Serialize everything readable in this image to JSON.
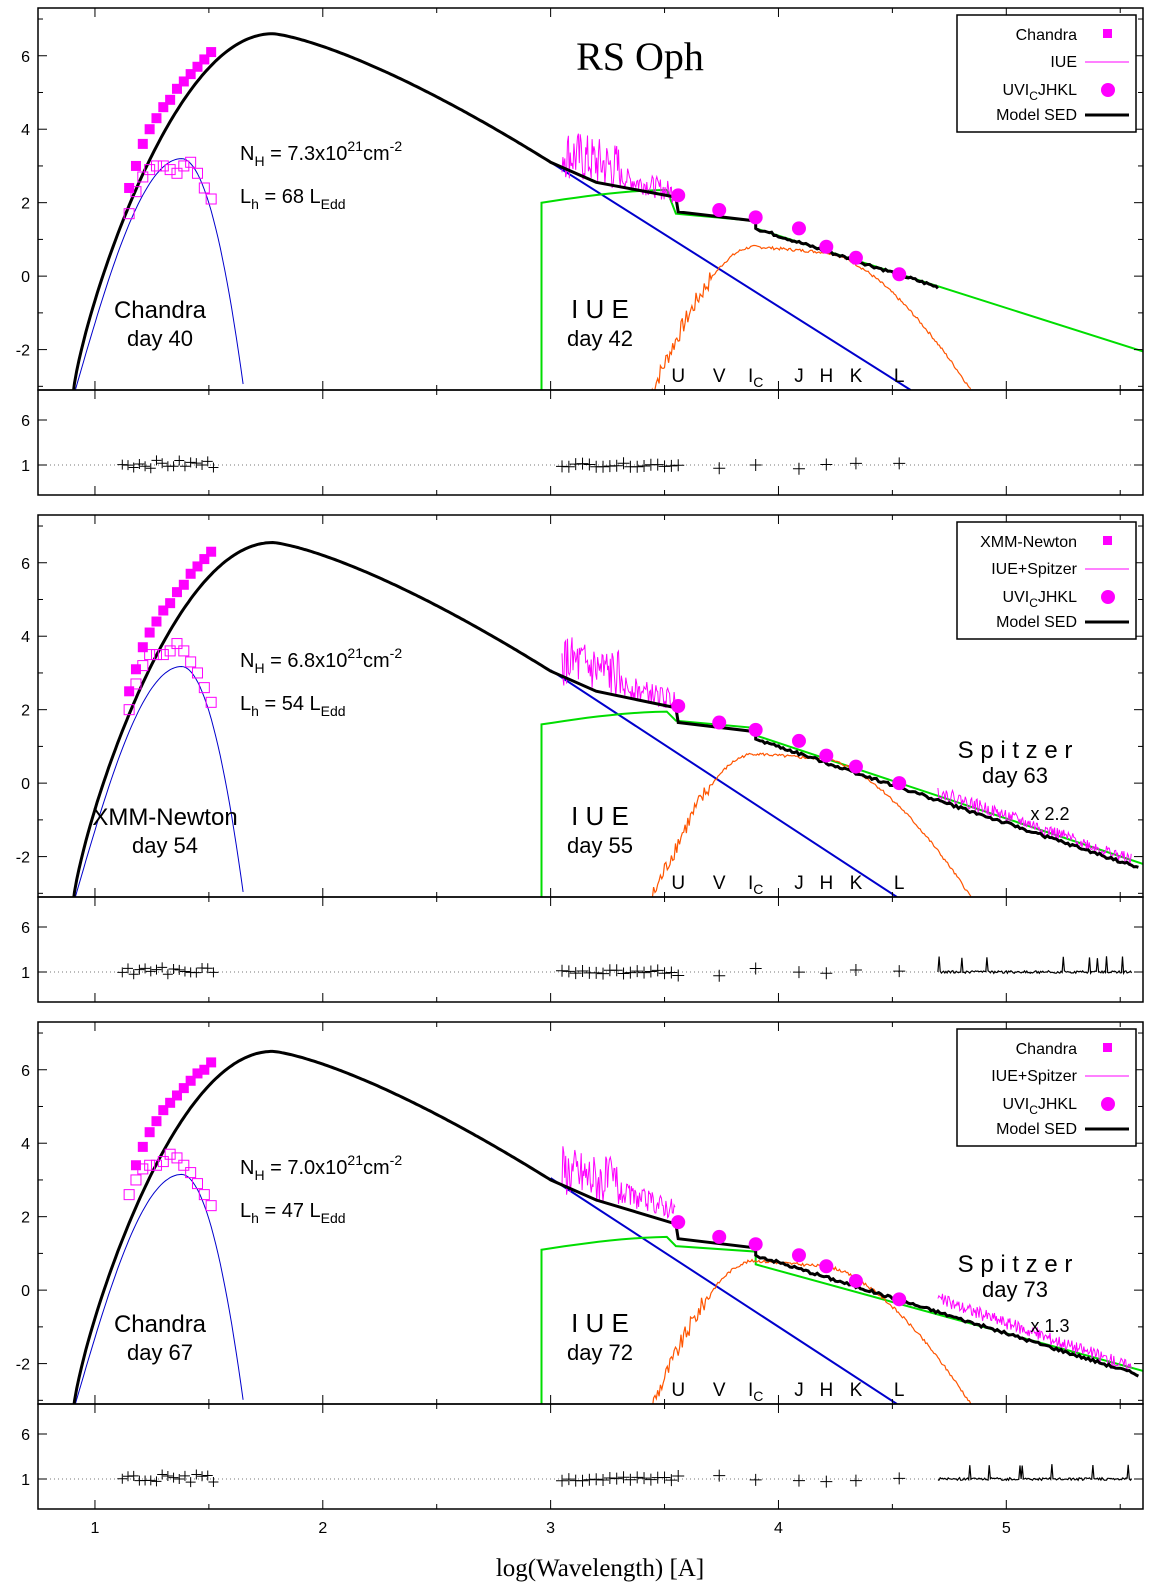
{
  "figure": {
    "main_title": "RS Oph",
    "xlabel": "log(Wavelength) [A]",
    "x_range": [
      0.75,
      5.6
    ],
    "x_ticks": [
      1,
      2,
      3,
      4,
      5
    ],
    "y_range": [
      -3.1,
      7.3
    ],
    "y_ticks": [
      -2,
      0,
      2,
      4,
      6
    ],
    "ratio_ticks": [
      1,
      6
    ],
    "band_labels": [
      {
        "text": "U",
        "x": 3.56
      },
      {
        "text": "V",
        "x": 3.74
      },
      {
        "text": "I",
        "sub": "C",
        "x": 3.9
      },
      {
        "text": "J",
        "x": 4.09
      },
      {
        "text": "H",
        "x": 4.21
      },
      {
        "text": "K",
        "x": 4.34
      },
      {
        "text": "L",
        "x": 4.53
      }
    ],
    "colors": {
      "xray": "#ff00ff",
      "model": "#000000",
      "blackbody": "#0000cc",
      "green_component": "#00dd00",
      "orange_component": "#ff5500",
      "residual": "#000000"
    }
  },
  "chart_data": [
    {
      "type": "line",
      "panel": "day 40/42",
      "legend": [
        "Chandra",
        "IUE",
        "UVI_CJHKL",
        "Model SED"
      ],
      "legend_display": {
        "xray": "Chandra",
        "spec": "IUE",
        "phot_pre": "UVI",
        "phot_sub": "C",
        "phot_post": "JHKL",
        "model": "Model SED"
      },
      "nh_mantissa": "7.3x10",
      "nh_exp": "21",
      "lh_value": "68",
      "xray_label": [
        "Chandra",
        "day 40"
      ],
      "uv_label": [
        "I U E",
        "day 42"
      ],
      "ir_label": null,
      "scale_label": null,
      "model_sed": {
        "peak_x": 1.78,
        "peak_y": 6.6,
        "x": [
          0.9,
          1.2,
          1.5,
          1.78,
          2.2,
          2.6,
          3.0,
          3.55,
          4.0,
          4.7
        ],
        "y": [
          -3.1,
          3.5,
          6.1,
          6.6,
          5.9,
          4.6,
          3.1,
          2.2,
          1.2,
          -0.3
        ]
      },
      "xray_points": {
        "x": [
          1.15,
          1.18,
          1.21,
          1.24,
          1.27,
          1.3,
          1.33,
          1.36,
          1.39,
          1.42,
          1.45,
          1.48,
          1.51
        ],
        "y": [
          2.4,
          3.0,
          3.6,
          4.0,
          4.3,
          4.6,
          4.8,
          5.1,
          5.3,
          5.5,
          5.7,
          5.9,
          6.1
        ]
      },
      "absorbed_points": {
        "x": [
          1.15,
          1.18,
          1.21,
          1.24,
          1.27,
          1.3,
          1.33,
          1.36,
          1.39,
          1.42,
          1.45,
          1.48,
          1.51
        ],
        "y": [
          1.7,
          2.3,
          2.7,
          2.9,
          3.0,
          3.0,
          2.9,
          2.8,
          3.0,
          3.1,
          2.8,
          2.4,
          2.1
        ]
      },
      "ubvjhkl_points": {
        "x": [
          3.56,
          3.74,
          3.9,
          4.09,
          4.21,
          4.34,
          4.53
        ],
        "y": [
          2.2,
          1.8,
          1.6,
          1.3,
          0.8,
          0.5,
          0.05
        ]
      },
      "spitzer_x_max": null,
      "ratio_tick_top": 6
    },
    {
      "type": "line",
      "panel": "day 54/55/63",
      "legend": [
        "XMM-Newton",
        "IUE+Spitzer",
        "UVI_CJHKL",
        "Model SED"
      ],
      "legend_display": {
        "xray": "XMM-Newton",
        "spec": "IUE+Spitzer",
        "phot_pre": "UVI",
        "phot_sub": "C",
        "phot_post": "JHKL",
        "model": "Model SED"
      },
      "nh_mantissa": "6.8x10",
      "nh_exp": "21",
      "lh_value": "54",
      "xray_label": [
        "XMM-Newton",
        "day 54"
      ],
      "uv_label": [
        "I U E",
        "day 55"
      ],
      "ir_label": [
        "S p i t z e r",
        "day 63"
      ],
      "scale_label": "x 2.2",
      "model_sed": {
        "peak_x": 1.76,
        "peak_y": 6.55
      },
      "xray_points": {
        "x": [
          1.15,
          1.18,
          1.21,
          1.24,
          1.27,
          1.3,
          1.33,
          1.36,
          1.39,
          1.42,
          1.45,
          1.48,
          1.51
        ],
        "y": [
          2.5,
          3.1,
          3.7,
          4.1,
          4.4,
          4.7,
          4.9,
          5.2,
          5.4,
          5.7,
          5.9,
          6.1,
          6.3
        ]
      },
      "absorbed_points": {
        "x": [
          1.15,
          1.18,
          1.21,
          1.24,
          1.27,
          1.3,
          1.33,
          1.36,
          1.39,
          1.42,
          1.45,
          1.48,
          1.51
        ],
        "y": [
          2.0,
          2.7,
          3.2,
          3.5,
          3.5,
          3.5,
          3.6,
          3.8,
          3.6,
          3.3,
          3.0,
          2.6,
          2.2
        ]
      },
      "ubvjhkl_points": {
        "x": [
          3.56,
          3.74,
          3.9,
          4.09,
          4.21,
          4.34,
          4.53
        ],
        "y": [
          2.1,
          1.65,
          1.45,
          1.15,
          0.75,
          0.45,
          0.0
        ]
      },
      "spitzer_x_max": 5.55,
      "ratio_tick_top": 6
    },
    {
      "type": "line",
      "panel": "day 67/72/73",
      "legend": [
        "Chandra",
        "IUE+Spitzer",
        "UVI_CJHKL",
        "Model SED"
      ],
      "legend_display": {
        "xray": "Chandra",
        "spec": "IUE+Spitzer",
        "phot_pre": "UVI",
        "phot_sub": "C",
        "phot_post": "JHKL",
        "model": "Model SED"
      },
      "nh_mantissa": "7.0x10",
      "nh_exp": "21",
      "lh_value": "47",
      "xray_label": [
        "Chandra",
        "day 67"
      ],
      "uv_label": [
        "I U E",
        "day 72"
      ],
      "ir_label": [
        "S p i t z e r",
        "day 73"
      ],
      "scale_label": "x 1.3",
      "model_sed": {
        "peak_x": 1.76,
        "peak_y": 6.5
      },
      "xray_points": {
        "x": [
          1.18,
          1.21,
          1.24,
          1.27,
          1.3,
          1.33,
          1.36,
          1.39,
          1.42,
          1.45,
          1.48,
          1.51
        ],
        "y": [
          3.4,
          3.9,
          4.3,
          4.6,
          4.9,
          5.1,
          5.3,
          5.5,
          5.7,
          5.9,
          6.0,
          6.2
        ]
      },
      "absorbed_points": {
        "x": [
          1.15,
          1.18,
          1.21,
          1.24,
          1.27,
          1.3,
          1.33,
          1.36,
          1.39,
          1.42,
          1.45,
          1.48,
          1.51
        ],
        "y": [
          2.6,
          3.0,
          3.3,
          3.4,
          3.4,
          3.5,
          3.7,
          3.6,
          3.4,
          3.2,
          2.9,
          2.6,
          2.3
        ]
      },
      "ubvjhkl_points": {
        "x": [
          3.56,
          3.74,
          3.9,
          4.09,
          4.21,
          4.34,
          4.53
        ],
        "y": [
          1.85,
          1.45,
          1.25,
          0.95,
          0.65,
          0.25,
          -0.25
        ]
      },
      "spitzer_x_max": 5.55,
      "ratio_tick_top": 6
    }
  ]
}
